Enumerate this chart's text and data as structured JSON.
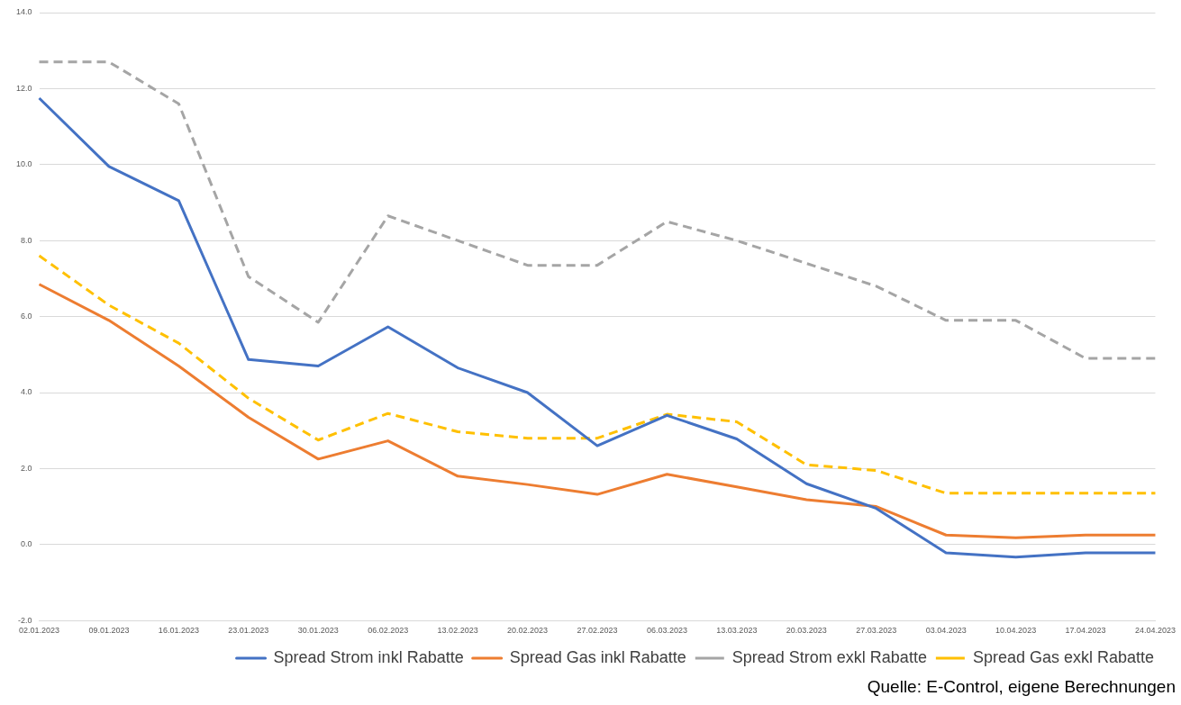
{
  "chart_data": {
    "type": "line",
    "categories": [
      "02.01.2023",
      "09.01.2023",
      "16.01.2023",
      "23.01.2023",
      "30.01.2023",
      "06.02.2023",
      "13.02.2023",
      "20.02.2023",
      "27.02.2023",
      "06.03.2023",
      "13.03.2023",
      "20.03.2023",
      "27.03.2023",
      "03.04.2023",
      "10.04.2023",
      "17.04.2023",
      "24.04.2023"
    ],
    "series": [
      {
        "name": "Spread Strom inkl Rabatte",
        "color": "#4472c4",
        "line_style": "solid",
        "values": [
          11.75,
          9.95,
          9.05,
          4.87,
          4.7,
          5.73,
          4.65,
          4.0,
          2.6,
          3.4,
          2.78,
          1.6,
          0.95,
          -0.22,
          -0.33,
          -0.22,
          -0.22
        ]
      },
      {
        "name": "Spread Gas inkl Rabatte",
        "color": "#ed7d31",
        "line_style": "solid",
        "values": [
          6.85,
          5.9,
          4.7,
          3.35,
          2.25,
          2.73,
          1.8,
          1.58,
          1.32,
          1.85,
          1.52,
          1.18,
          1.0,
          0.25,
          0.18,
          0.25,
          0.25
        ]
      },
      {
        "name": "Spread Strom exkl Rabatte",
        "color": "#a5a5a5",
        "line_style": "dashed",
        "values": [
          12.7,
          12.7,
          11.6,
          7.05,
          5.85,
          8.65,
          8.0,
          7.35,
          7.35,
          8.5,
          8.0,
          7.4,
          6.8,
          5.9,
          5.9,
          4.9,
          4.9
        ]
      },
      {
        "name": "Spread Gas exkl Rabatte",
        "color": "#ffc000",
        "line_style": "dashed",
        "values": [
          7.6,
          6.3,
          5.3,
          3.85,
          2.75,
          3.45,
          2.97,
          2.8,
          2.8,
          3.43,
          3.23,
          2.1,
          1.95,
          1.35,
          1.35,
          1.35,
          1.35
        ]
      }
    ],
    "ylim": [
      -2,
      14
    ],
    "yticks": [
      {
        "value": -2,
        "label": "-2.0"
      },
      {
        "value": 0,
        "label": "0.0"
      },
      {
        "value": 2,
        "label": "2.0"
      },
      {
        "value": 4,
        "label": "4.0"
      },
      {
        "value": 6,
        "label": "6.0"
      },
      {
        "value": 8,
        "label": "8.0"
      },
      {
        "value": 10,
        "label": "10.0"
      },
      {
        "value": 12,
        "label": "12.0"
      },
      {
        "value": 14,
        "label": "14.0"
      }
    ],
    "grid": "y",
    "legend": "bottom",
    "marker": "none",
    "annotations": [
      "Quelle: E-Control, eigene Berechnungen"
    ]
  }
}
